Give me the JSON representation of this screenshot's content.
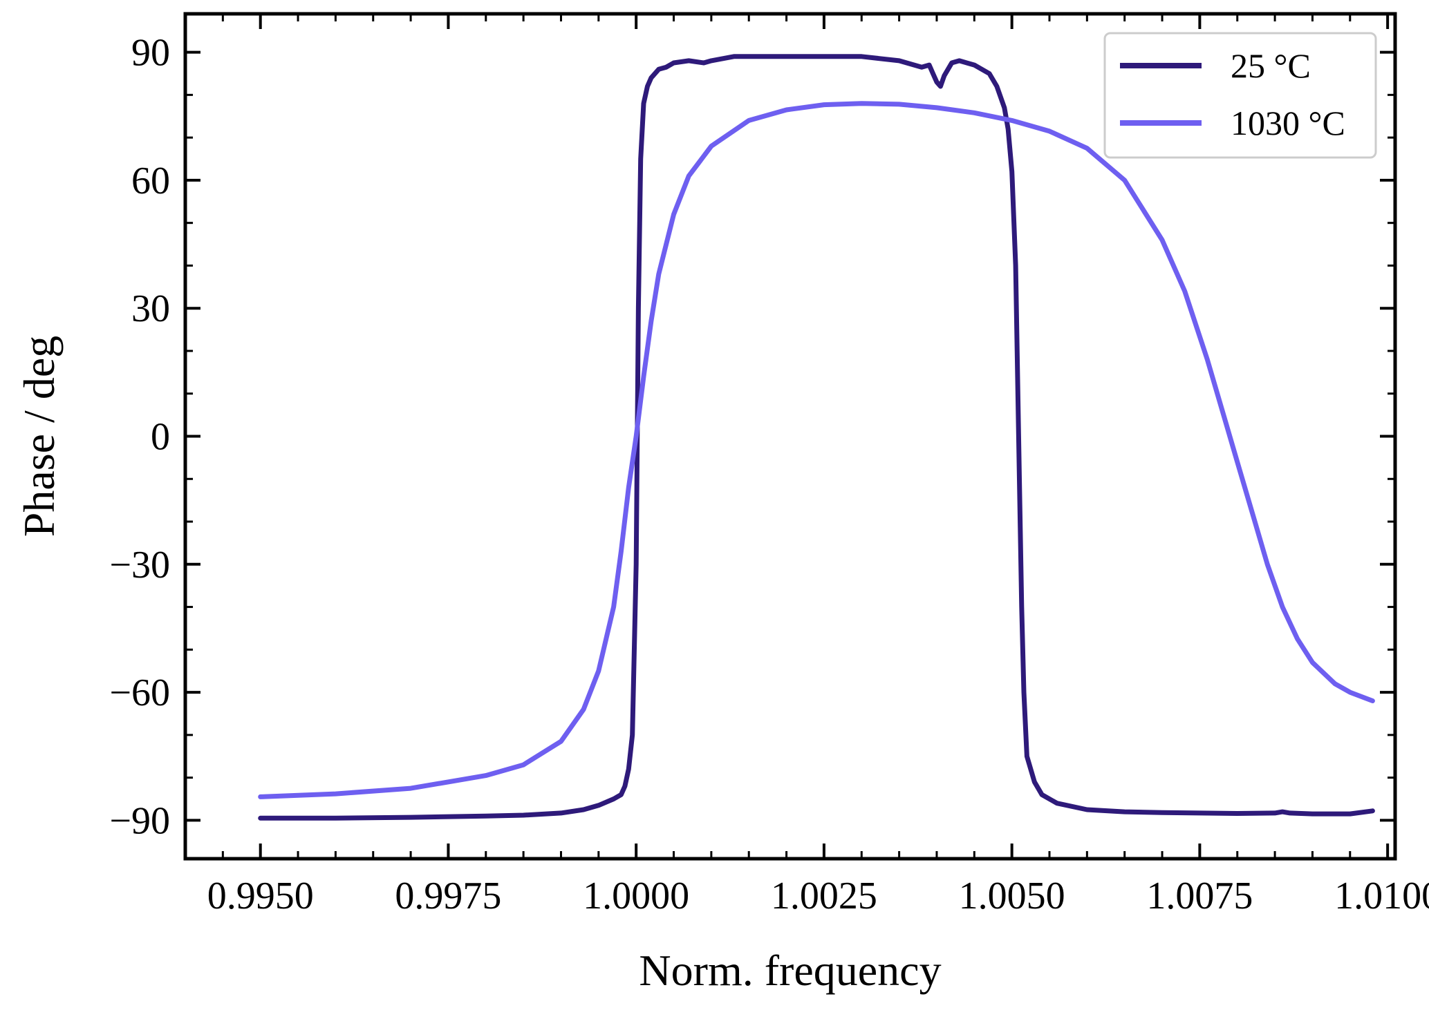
{
  "chart_data": {
    "type": "line",
    "title": "",
    "xlabel": "Norm. frequency",
    "ylabel": "Phase / deg",
    "xlim": [
      0.994,
      1.0101
    ],
    "ylim": [
      -99,
      99
    ],
    "x_ticks": [
      0.995,
      0.9975,
      1.0,
      1.0025,
      1.005,
      1.0075,
      1.01
    ],
    "x_tick_labels": [
      "0.9950",
      "0.9975",
      "1.0000",
      "1.0025",
      "1.0050",
      "1.0075",
      "1.0100"
    ],
    "y_ticks": [
      -90,
      -60,
      -30,
      0,
      30,
      60,
      90
    ],
    "y_tick_labels": [
      "−90",
      "−60",
      "−30",
      "0",
      "30",
      "60",
      "90"
    ],
    "grid": false,
    "legend": {
      "placement": "top-right"
    },
    "series": [
      {
        "name": "25 °C",
        "color": "#2e1a7a",
        "x": [
          0.995,
          0.996,
          0.997,
          0.998,
          0.9985,
          0.999,
          0.9993,
          0.9995,
          0.9997,
          0.9998,
          0.99985,
          0.9999,
          0.99995,
          1.0,
          1.00003,
          1.00006,
          1.0001,
          1.00015,
          1.0002,
          1.0003,
          1.0004,
          1.0005,
          1.0007,
          1.0009,
          1.001,
          1.0013,
          1.0015,
          1.002,
          1.0025,
          1.003,
          1.0035,
          1.0037,
          1.0038,
          1.0039,
          1.00395,
          1.004,
          1.00405,
          1.0041,
          1.0042,
          1.0043,
          1.0045,
          1.0047,
          1.0048,
          1.0049,
          1.00495,
          1.005,
          1.00505,
          1.0051,
          1.00513,
          1.00516,
          1.0052,
          1.0053,
          1.0054,
          1.0056,
          1.006,
          1.0065,
          1.007,
          1.0075,
          1.008,
          1.0085,
          1.0086,
          1.0087,
          1.009,
          1.0095,
          1.0098
        ],
        "y": [
          -89.5,
          -89.5,
          -89.3,
          -89.0,
          -88.8,
          -88.3,
          -87.5,
          -86.5,
          -85.0,
          -84.0,
          -82.0,
          -78.0,
          -70.0,
          -30.0,
          30.0,
          65.0,
          78.0,
          82.0,
          84.0,
          86.0,
          86.5,
          87.5,
          88.0,
          87.5,
          88.0,
          89.0,
          89.0,
          89.0,
          89.0,
          89.0,
          88.0,
          87.0,
          86.5,
          87.0,
          85.0,
          83.0,
          82.0,
          84.5,
          87.5,
          88.0,
          87.0,
          85.0,
          82.0,
          77.0,
          72.0,
          62.0,
          40.0,
          -10.0,
          -40.0,
          -60.0,
          -75.0,
          -81.0,
          -84.0,
          -86.0,
          -87.5,
          -88.0,
          -88.2,
          -88.3,
          -88.4,
          -88.3,
          -88.0,
          -88.3,
          -88.5,
          -88.5,
          -87.8
        ]
      },
      {
        "name": "1030 °C",
        "color": "#6e5ff0",
        "x": [
          0.995,
          0.996,
          0.997,
          0.998,
          0.9985,
          0.999,
          0.9993,
          0.9995,
          0.9997,
          0.9998,
          0.9999,
          1.0,
          1.0001,
          1.0002,
          1.0003,
          1.0005,
          1.0007,
          1.001,
          1.0015,
          1.002,
          1.0025,
          1.003,
          1.0035,
          1.004,
          1.0045,
          1.005,
          1.0055,
          1.006,
          1.0065,
          1.007,
          1.0073,
          1.0076,
          1.0078,
          1.008,
          1.0082,
          1.0084,
          1.0086,
          1.0088,
          1.009,
          1.0093,
          1.0095,
          1.0098
        ],
        "y": [
          -84.5,
          -83.8,
          -82.5,
          -79.5,
          -77.0,
          -71.5,
          -64.0,
          -55.0,
          -40.0,
          -27.0,
          -12.0,
          0.0,
          14.0,
          27.0,
          38.0,
          52.0,
          61.0,
          68.0,
          74.0,
          76.5,
          77.7,
          78.0,
          77.8,
          77.0,
          75.8,
          74.0,
          71.5,
          67.5,
          60.0,
          46.0,
          34.0,
          18.0,
          6.0,
          -6.0,
          -18.0,
          -30.0,
          -40.0,
          -47.5,
          -53.0,
          -58.0,
          -60.0,
          -62.0
        ]
      }
    ]
  }
}
